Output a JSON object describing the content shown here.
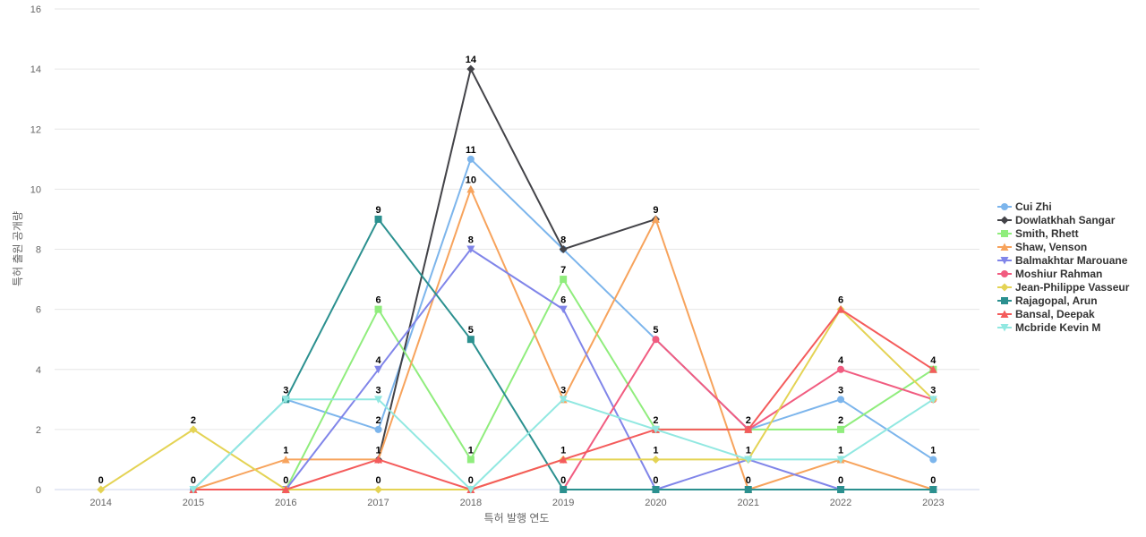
{
  "chart_data": {
    "type": "line",
    "title": "",
    "xlabel": "특허 발행 연도",
    "ylabel": "특허 출원 공개량",
    "categories": [
      "2014",
      "2015",
      "2016",
      "2017",
      "2018",
      "2019",
      "2020",
      "2021",
      "2022",
      "2023"
    ],
    "ylim": [
      0,
      16
    ],
    "yticks": [
      0,
      2,
      4,
      6,
      8,
      10,
      12,
      14,
      16
    ],
    "grid": true,
    "legend_position": "right",
    "series": [
      {
        "name": "Cui Zhi",
        "color": "#7cb5ec",
        "marker": "circle",
        "values": [
          null,
          0,
          3,
          2,
          11,
          8,
          5,
          2,
          3,
          1
        ],
        "labels": [
          null,
          null,
          null,
          "2",
          "11",
          null,
          null,
          null,
          "3",
          "1"
        ]
      },
      {
        "name": "Dowlatkhah Sangar",
        "color": "#434348",
        "marker": "diamond",
        "values": [
          null,
          null,
          null,
          1,
          14,
          8,
          9,
          null,
          null,
          null
        ],
        "labels": [
          null,
          null,
          null,
          null,
          "14",
          "8",
          null,
          null,
          null,
          null
        ]
      },
      {
        "name": "Smith, Rhett",
        "color": "#90ed7d",
        "marker": "square",
        "values": [
          null,
          null,
          0,
          6,
          1,
          7,
          2,
          2,
          2,
          4
        ],
        "labels": [
          null,
          null,
          null,
          "6",
          "1",
          "7",
          "2",
          null,
          "2",
          null
        ]
      },
      {
        "name": "Shaw, Venson",
        "color": "#f7a35c",
        "marker": "triangle",
        "values": [
          null,
          0,
          1,
          1,
          10,
          3,
          9,
          0,
          1,
          0
        ],
        "labels": [
          null,
          null,
          "1",
          "1",
          "10",
          "3",
          "9",
          "0",
          null,
          null
        ]
      },
      {
        "name": "Balmakhtar Marouane",
        "color": "#8085e9",
        "marker": "triangle-down",
        "values": [
          null,
          null,
          0,
          4,
          8,
          6,
          0,
          1,
          0,
          0
        ],
        "labels": [
          null,
          null,
          null,
          "4",
          "8",
          "6",
          null,
          null,
          "0",
          null
        ]
      },
      {
        "name": "Moshiur Rahman",
        "color": "#f15c80",
        "marker": "circle",
        "values": [
          null,
          null,
          null,
          null,
          null,
          0,
          5,
          2,
          4,
          3
        ],
        "labels": [
          null,
          null,
          null,
          null,
          null,
          "0",
          "5",
          null,
          "4",
          null
        ]
      },
      {
        "name": "Jean-Philippe Vasseur",
        "color": "#e4d354",
        "marker": "diamond",
        "values": [
          0,
          2,
          0,
          0,
          0,
          1,
          1,
          1,
          6,
          3
        ],
        "labels": [
          "0",
          "2",
          null,
          "0",
          "0",
          "1",
          "1",
          "1",
          null,
          null
        ]
      },
      {
        "name": "Rajagopal, Arun",
        "color": "#2b908f",
        "marker": "square",
        "values": [
          null,
          null,
          3,
          9,
          5,
          0,
          0,
          0,
          0,
          0
        ],
        "labels": [
          null,
          null,
          null,
          "9",
          "5",
          null,
          "0",
          null,
          null,
          "0"
        ]
      },
      {
        "name": "Bansal, Deepak",
        "color": "#f45b5b",
        "marker": "triangle",
        "values": [
          null,
          0,
          0,
          1,
          0,
          1,
          2,
          2,
          6,
          4
        ],
        "labels": [
          null,
          "0",
          "0",
          null,
          null,
          null,
          null,
          "2",
          "6",
          "4"
        ]
      },
      {
        "name": "Mcbride Kevin M",
        "color": "#91e8e1",
        "marker": "triangle-down",
        "values": [
          null,
          0,
          3,
          3,
          0,
          3,
          2,
          1,
          1,
          3
        ],
        "labels": [
          null,
          null,
          "3",
          "3",
          null,
          null,
          null,
          null,
          "1",
          "3"
        ]
      }
    ]
  }
}
